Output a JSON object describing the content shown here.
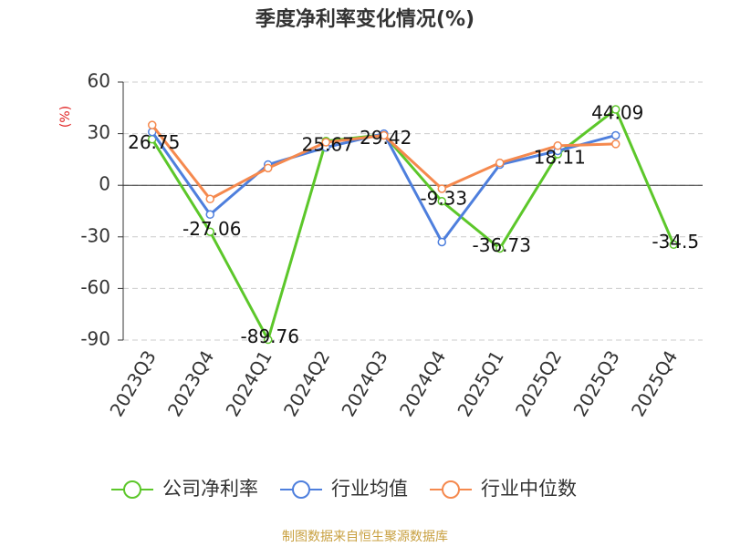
{
  "chart_data": {
    "type": "line",
    "title": "季度净利率变化情况(%)",
    "y_label": "(%)",
    "categories": [
      "2023Q3",
      "2023Q4",
      "2024Q1",
      "2024Q2",
      "2024Q3",
      "2024Q4",
      "2025Q1",
      "2025Q2",
      "2025Q3",
      "2025Q4"
    ],
    "series": [
      {
        "name": "公司净利率",
        "color": "#5cc72a",
        "data_labels": true,
        "values": [
          26.75,
          -27.06,
          -89.76,
          25.67,
          29.42,
          -9.33,
          -36.73,
          18.11,
          44.09,
          -34.5
        ]
      },
      {
        "name": "行业均值",
        "color": "#4e7fdd",
        "values": [
          31,
          -17,
          12,
          22,
          30,
          -33,
          12,
          20,
          29,
          null
        ]
      },
      {
        "name": "行业中位数",
        "color": "#f5894e",
        "values": [
          35,
          -8,
          10,
          25,
          29,
          -2,
          13,
          23,
          24,
          null
        ]
      }
    ],
    "ylim": [
      -90,
      60
    ],
    "yticks": [
      -90,
      -60,
      -30,
      0,
      30,
      60
    ],
    "grid": true,
    "source": "制图数据来自恒生聚源数据库"
  }
}
